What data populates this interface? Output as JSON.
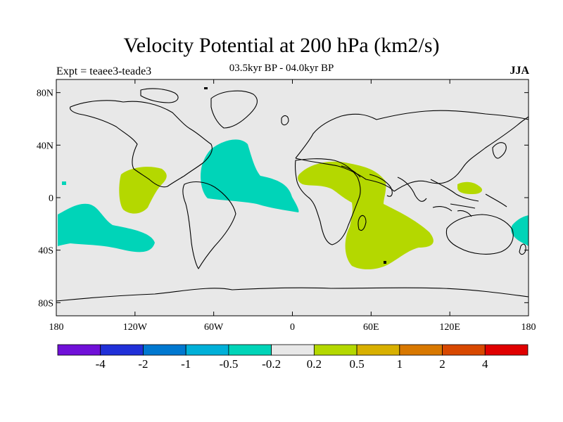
{
  "title": "Velocity Potential at 200 hPa (km2/s)",
  "subtitle": "03.5kyr BP - 04.0kyr BP",
  "experiment_label": "Expt = teaee3-teade3",
  "season": "JJA",
  "map": {
    "projection": "cylindrical-equidistant",
    "lon_range": [
      -180,
      180
    ],
    "lat_range": [
      -90,
      90
    ],
    "ocean_color": "#e8e8e8",
    "coastline_color": "#000000",
    "lat_ticks": [
      {
        "label": "80N",
        "value": 80
      },
      {
        "label": "40N",
        "value": 40
      },
      {
        "label": "0",
        "value": 0
      },
      {
        "label": "40S",
        "value": -40
      },
      {
        "label": "80S",
        "value": -80
      }
    ],
    "lon_ticks": [
      {
        "label": "180",
        "value": -180
      },
      {
        "label": "120W",
        "value": -120
      },
      {
        "label": "60W",
        "value": -60
      },
      {
        "label": "0",
        "value": 0
      },
      {
        "label": "60E",
        "value": 60
      },
      {
        "label": "120E",
        "value": 120
      },
      {
        "label": "180",
        "value": 180
      }
    ]
  },
  "colorbar": {
    "colors": [
      "#7010d8",
      "#2030d8",
      "#0078d0",
      "#00b0d8",
      "#00d4b8",
      "#e8e8e8",
      "#b4d800",
      "#d8b000",
      "#d87800",
      "#d84800",
      "#e00000"
    ],
    "labels": [
      "-4",
      "-2",
      "-1",
      "-0.5",
      "-0.2",
      "0.2",
      "0.5",
      "1",
      "2",
      "4"
    ]
  }
}
